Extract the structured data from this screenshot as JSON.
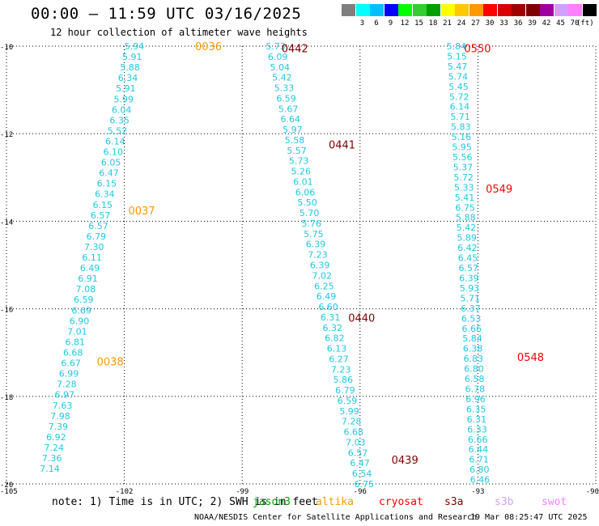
{
  "header": {
    "title": "00:00 — 11:59 UTC 03/16/2025",
    "subtitle": "12 hour collection of altimeter wave heights"
  },
  "color_scale": {
    "unit": "(ft)",
    "items": [
      {
        "label": "",
        "color": "#7f7f7f"
      },
      {
        "label": "3",
        "color": "#00ffff"
      },
      {
        "label": "6",
        "color": "#00bfff"
      },
      {
        "label": "9",
        "color": "#0000ff"
      },
      {
        "label": "12",
        "color": "#00ff00"
      },
      {
        "label": "15",
        "color": "#33cc33"
      },
      {
        "label": "18",
        "color": "#00a000"
      },
      {
        "label": "21",
        "color": "#ffff00"
      },
      {
        "label": "24",
        "color": "#ffc800"
      },
      {
        "label": "27",
        "color": "#ff9900"
      },
      {
        "label": "30",
        "color": "#ff0000"
      },
      {
        "label": "33",
        "color": "#d80000"
      },
      {
        "label": "36",
        "color": "#a00000"
      },
      {
        "label": "39",
        "color": "#800000"
      },
      {
        "label": "42",
        "color": "#a000a0"
      },
      {
        "label": "45",
        "color": "#d0a0ff"
      },
      {
        "label": "70",
        "color": "#ff80ff"
      },
      {
        "label": "",
        "color": "#000000"
      }
    ]
  },
  "map": {
    "lon_labels": [
      "-105",
      "-102",
      "-99",
      "-96",
      "-93",
      "-90"
    ],
    "lat_labels": [
      "-10",
      "-12",
      "-14",
      "-16",
      "-18",
      "-20"
    ],
    "lon_range": [
      -105,
      -90
    ],
    "lat_range": [
      -20,
      -10
    ]
  },
  "value_color": "#1ec8e6",
  "tracks": [
    {
      "values": [
        "5.94",
        "5.91",
        "5.88",
        "6.34",
        "5.91",
        "5.99",
        "6.04",
        "6.35",
        "5.52",
        "6.14",
        "6.10",
        "6.05",
        "6.47",
        "6.15",
        "6.34",
        "6.15",
        "6.57",
        "6.57",
        "6.79",
        "7.30",
        "6.11",
        "6.49",
        "6.91",
        "7.08",
        "6.59",
        "6.69",
        "6.90",
        "7.01",
        "6.81",
        "6.68",
        "6.67",
        "6.99",
        "7.28",
        "6.97",
        "7.63",
        "7.98",
        "7.39",
        "6.92",
        "7.24",
        "7.36",
        "7.14"
      ],
      "lat_start": -10.0,
      "lat_end": -19.65,
      "lon_start": -102.0,
      "lon_end": -104.15,
      "times": [
        {
          "label": "0036",
          "color": "#ff9900",
          "lat": -10.0,
          "lon": -100.2
        },
        {
          "label": "0037",
          "color": "#ff9900",
          "lat": -13.75,
          "lon": -101.9
        },
        {
          "label": "0038",
          "color": "#ff9900",
          "lat": -17.2,
          "lon": -102.7
        }
      ]
    },
    {
      "values": [
        "5.73",
        "6.09",
        "5.04",
        "5.42",
        "5.33",
        "6.59",
        "5.67",
        "6.64",
        "5.97",
        "5.58",
        "5.57",
        "5.73",
        "5.26",
        "6.01",
        "6.06",
        "5.50",
        "5.70",
        "5.76",
        "5.75",
        "6.39",
        "7.23",
        "6.39",
        "7.02",
        "6.25",
        "6.49",
        "6.60",
        "6.31",
        "6.32",
        "6.82",
        "6.13",
        "6.27",
        "7.23",
        "5.86",
        "6.79",
        "6.59",
        "5.99",
        "7.28",
        "6.68",
        "7.03",
        "6.57",
        "6.47",
        "6.54",
        "6.75"
      ],
      "lat_start": -10.0,
      "lat_end": -20.0,
      "lon_start": -98.4,
      "lon_end": -96.15,
      "times": [
        {
          "label": "0442",
          "color": "#800000",
          "lat": -10.05,
          "lon": -98.0
        },
        {
          "label": "0441",
          "color": "#800000",
          "lat": -12.25,
          "lon": -96.8
        },
        {
          "label": "0440",
          "color": "#800000",
          "lat": -16.2,
          "lon": -96.3
        },
        {
          "label": "0439",
          "color": "#800000",
          "lat": -19.45,
          "lon": -95.2
        }
      ]
    },
    {
      "values": [
        "5.84",
        "5.15",
        "5.47",
        "5.74",
        "5.45",
        "5.72",
        "6.14",
        "5.71",
        "5.83",
        "5.16",
        "5.95",
        "5.56",
        "5.37",
        "5.72",
        "5.33",
        "5.41",
        "6.75",
        "5.88",
        "5.42",
        "5.89",
        "6.42",
        "6.45",
        "6.57",
        "6.39",
        "5.93",
        "5.71",
        "6.37",
        "6.53",
        "6.66",
        "5.84",
        "6.38",
        "6.83",
        "6.80",
        "6.58",
        "6.78",
        "6.96",
        "6.35",
        "6.31",
        "6.33",
        "6.66",
        "6.44",
        "6.71",
        "6.80",
        "6.46"
      ],
      "lat_start": -10.0,
      "lat_end": -19.9,
      "lon_start": -93.8,
      "lon_end": -93.2,
      "times": [
        {
          "label": "0550",
          "color": "#ff0000",
          "lat": -10.05,
          "lon": -93.35
        },
        {
          "label": "0549",
          "color": "#ff0000",
          "lat": -13.25,
          "lon": -92.8
        },
        {
          "label": "0548",
          "color": "#ff0000",
          "lat": -17.1,
          "lon": -92.0
        }
      ]
    }
  ],
  "footer": {
    "note": "note: 1) Time is in UTC; 2) SWH is in feet",
    "satellites": [
      {
        "label": "jason3",
        "color": "#00a000"
      },
      {
        "label": "altika",
        "color": "#ff9900"
      },
      {
        "label": "cryosat",
        "color": "#ff0000"
      },
      {
        "label": "s3a",
        "color": "#800000"
      },
      {
        "label": "s3b",
        "color": "#d0a0ff"
      },
      {
        "label": "swot",
        "color": "#ff80ff"
      }
    ],
    "credit": "NOAA/NESDIS Center for Satellite Applications and Research",
    "timestamp": "19 Mar 08:25:47 UTC 2025"
  }
}
